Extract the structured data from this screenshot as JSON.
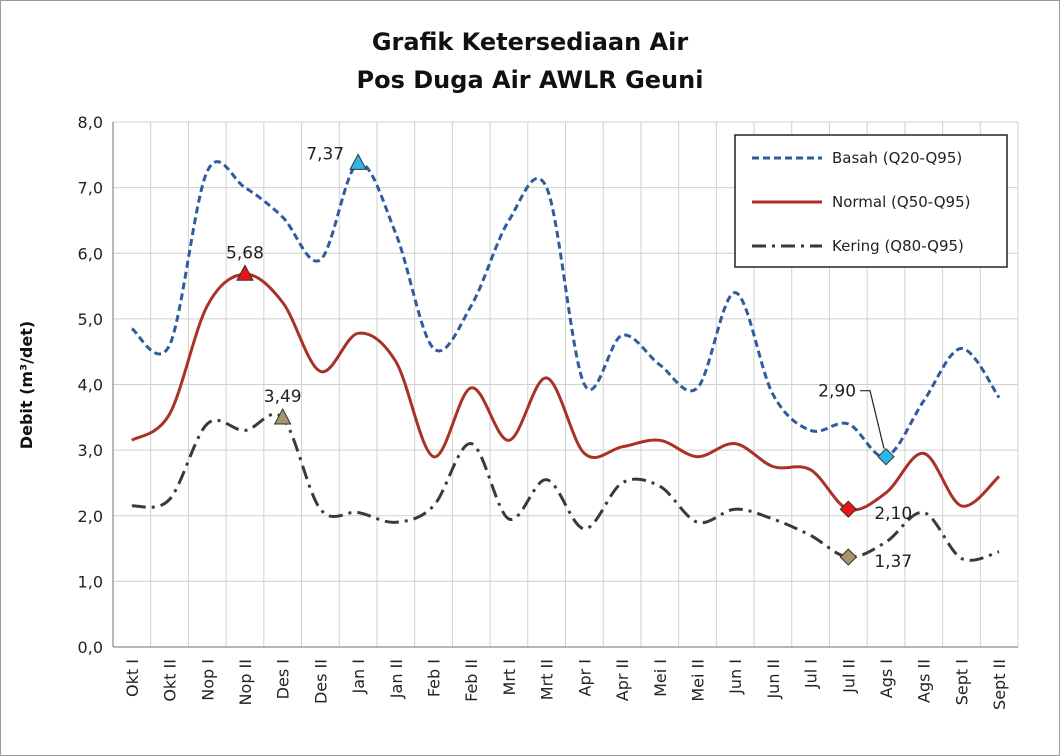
{
  "chart_data": {
    "type": "line",
    "title": "Grafik Ketersediaan Air",
    "subtitle": "Pos Duga Air AWLR Geuni",
    "ylabel": "Debit (m³/det)",
    "xlabel": "",
    "ylim": [
      0,
      8
    ],
    "ytick_step": 1,
    "ytick_labels": [
      "0,0",
      "1,0",
      "2,0",
      "3,0",
      "4,0",
      "5,0",
      "6,0",
      "7,0",
      "8,0"
    ],
    "grid": true,
    "legend_position": "top-right",
    "categories": [
      "Okt I",
      "Okt II",
      "Nop I",
      "Nop II",
      "Des I",
      "Des II",
      "Jan I",
      "Jan II",
      "Feb I",
      "Feb II",
      "Mrt I",
      "Mrt II",
      "Apr I",
      "Apr II",
      "Mei I",
      "Mei II",
      "Jun I",
      "Jun II",
      "Jul I",
      "Jul II",
      "Ags I",
      "Ags II",
      "Sept I",
      "Sept II"
    ],
    "series": [
      {
        "name": "Basah (Q20-Q95)",
        "color": "#2e5c9e",
        "style": "dashed",
        "values": [
          4.85,
          4.6,
          7.25,
          7.0,
          6.55,
          5.9,
          7.37,
          6.3,
          4.55,
          5.2,
          6.5,
          7.0,
          4.0,
          4.75,
          4.3,
          3.95,
          5.4,
          3.85,
          3.3,
          3.4,
          2.9,
          3.75,
          4.55,
          3.8
        ]
      },
      {
        "name": "Normal (Q50-Q95)",
        "color": "#a93226",
        "style": "solid",
        "values": [
          3.15,
          3.55,
          5.2,
          5.68,
          5.25,
          4.2,
          4.78,
          4.35,
          2.9,
          3.95,
          3.15,
          4.1,
          2.95,
          3.05,
          3.15,
          2.9,
          3.1,
          2.75,
          2.7,
          2.1,
          2.35,
          2.95,
          2.15,
          2.6
        ]
      },
      {
        "name": "Kering (Q80-Q95)",
        "color": "#3a3a3a",
        "style": "dashdot",
        "values": [
          2.15,
          2.25,
          3.4,
          3.3,
          3.49,
          2.1,
          2.05,
          1.9,
          2.15,
          3.1,
          1.95,
          2.55,
          1.8,
          2.5,
          2.45,
          1.9,
          2.1,
          1.95,
          1.7,
          1.37,
          1.6,
          2.05,
          1.35,
          1.45
        ]
      }
    ],
    "annotations": [
      {
        "series": 0,
        "index": 6,
        "text": "7,37",
        "marker": "triangle",
        "color": "#2fb6e8",
        "side": "left"
      },
      {
        "series": 1,
        "index": 3,
        "text": "5,68",
        "marker": "triangle",
        "color": "#e8141a",
        "side": "top"
      },
      {
        "series": 2,
        "index": 4,
        "text": "3,49",
        "marker": "triangle",
        "color": "#a6956b",
        "side": "top"
      },
      {
        "series": 0,
        "index": 20,
        "text": "2,90",
        "marker": "diamond",
        "color": "#2fb6e8",
        "side": "leader"
      },
      {
        "series": 1,
        "index": 19,
        "text": "2,10",
        "marker": "diamond",
        "color": "#e8141a",
        "side": "right"
      },
      {
        "series": 2,
        "index": 19,
        "text": "1,37",
        "marker": "diamond",
        "color": "#a6956b",
        "side": "right"
      }
    ]
  }
}
